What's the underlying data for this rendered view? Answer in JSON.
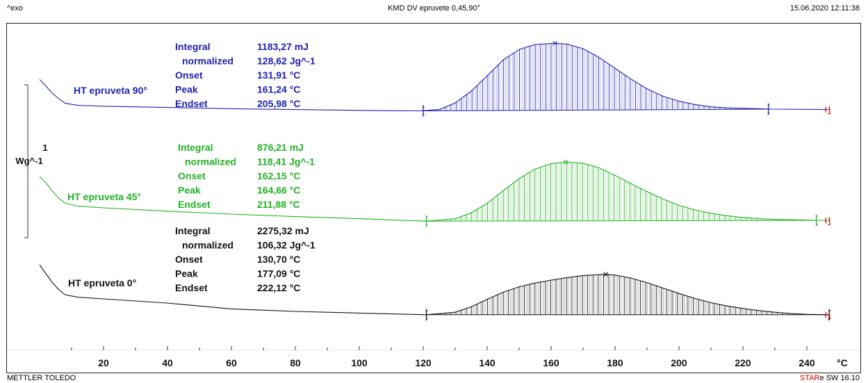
{
  "header": {
    "left": "^exo",
    "title": "KMD DV epruvete 0,45,90°",
    "datetime": "15.06.2020 12:11:38"
  },
  "footer": {
    "left": "METTLER TOLEDO",
    "brand_red": "STAR",
    "brand_rest": "e SW 16.10"
  },
  "scale_bar": {
    "value": "1",
    "unit": "Wg^-1"
  },
  "colors": {
    "t90": "#2020b0",
    "t45": "#22b022",
    "t0": "#111111",
    "limit_marker": "#d40000"
  },
  "chart_data": {
    "type": "line",
    "xlabel": "°C",
    "xlim": [
      0,
      248
    ],
    "xticks": [
      20,
      40,
      60,
      80,
      100,
      120,
      140,
      160,
      180,
      200,
      220,
      240
    ],
    "series": [
      {
        "name": "HT epruveta 90°",
        "color": "#2020b0",
        "x": [
          0,
          2,
          4,
          6,
          8,
          12,
          20,
          40,
          60,
          80,
          100,
          110,
          119,
          125,
          130,
          135,
          140,
          145,
          150,
          155,
          161.24,
          165,
          170,
          175,
          180,
          185,
          190,
          195,
          200,
          205,
          210,
          215,
          220,
          225,
          229,
          240,
          247
        ],
        "y": [
          7.6,
          6.0,
          4.3,
          3.0,
          1.9,
          1.4,
          1.2,
          0.9,
          0.6,
          0.4,
          0.2,
          0.12,
          0.08,
          0.4,
          2.0,
          4.8,
          8.5,
          12.3,
          14.8,
          16.0,
          16.3,
          16.1,
          15.0,
          12.9,
          10.3,
          7.7,
          5.4,
          3.6,
          2.4,
          1.6,
          1.05,
          0.8,
          0.7,
          0.6,
          0.5,
          0.45,
          0.4
        ],
        "baseline": {
          "x1": 120,
          "y1": 0.08,
          "x2": 228,
          "y2": 0.5
        },
        "labels": {
          "integral": "1183,27 mJ",
          "normalized": "128,62 Jg^-1",
          "onset": "131,91 °C",
          "peak": "161,24 °C",
          "endset": "205,98 °C"
        }
      },
      {
        "name": "HT epruveta 45°",
        "color": "#22b022",
        "x": [
          0,
          2,
          4,
          6,
          8,
          12,
          20,
          40,
          60,
          80,
          100,
          110,
          121,
          130,
          135,
          140,
          145,
          150,
          155,
          160,
          164.66,
          170,
          175,
          180,
          185,
          190,
          195,
          200,
          205,
          210,
          215,
          220,
          225,
          230,
          235,
          244,
          247
        ],
        "y": [
          11.0,
          9.5,
          7.5,
          5.8,
          4.6,
          3.9,
          3.5,
          2.7,
          2.0,
          1.4,
          0.9,
          0.6,
          0.3,
          0.9,
          2.3,
          4.6,
          7.6,
          10.5,
          12.8,
          14.1,
          14.5,
          14.2,
          13.1,
          11.3,
          9.3,
          7.4,
          5.6,
          4.1,
          3.0,
          2.2,
          1.6,
          1.2,
          0.9,
          0.75,
          0.65,
          0.5,
          0.45
        ],
        "baseline": {
          "x1": 121,
          "y1": 0.3,
          "x2": 243,
          "y2": 0.5
        },
        "labels": {
          "integral": "876,21 mJ",
          "normalized": "118,41 Jg^-1",
          "onset": "162,15 °C",
          "peak": "164,66 °C",
          "endset": "211,88 °C"
        }
      },
      {
        "name": "HT epruveta 0°",
        "color": "#111111",
        "x": [
          0,
          2,
          4,
          6,
          8,
          12,
          20,
          40,
          60,
          80,
          100,
          110,
          121,
          130,
          135,
          140,
          145,
          150,
          155,
          160,
          165,
          170,
          177.09,
          180,
          185,
          190,
          195,
          200,
          205,
          210,
          215,
          220,
          225,
          230,
          235,
          240,
          247
        ],
        "y": [
          12.2,
          10.0,
          7.9,
          6.2,
          5.0,
          4.4,
          4.0,
          3.0,
          1.6,
          1.0,
          0.6,
          0.4,
          0.2,
          0.8,
          2.1,
          3.9,
          5.6,
          6.9,
          7.8,
          8.5,
          9.1,
          9.6,
          9.9,
          9.7,
          9.0,
          7.9,
          6.6,
          5.3,
          4.1,
          3.1,
          2.3,
          1.7,
          1.2,
          0.8,
          0.5,
          0.3,
          0.2
        ],
        "baseline": {
          "x1": 121,
          "y1": 0.2,
          "x2": 247,
          "y2": 0.2
        },
        "labels": {
          "integral": "2275,32 mJ",
          "normalized": "106,32 Jg^-1",
          "onset": "130,70 °C",
          "peak": "177,09 °C",
          "endset": "222,12 °C"
        }
      }
    ],
    "label_names": {
      "integral": "Integral",
      "normalized": "normalized",
      "onset": "Onset",
      "peak": "Peak",
      "endset": "Endset"
    }
  }
}
